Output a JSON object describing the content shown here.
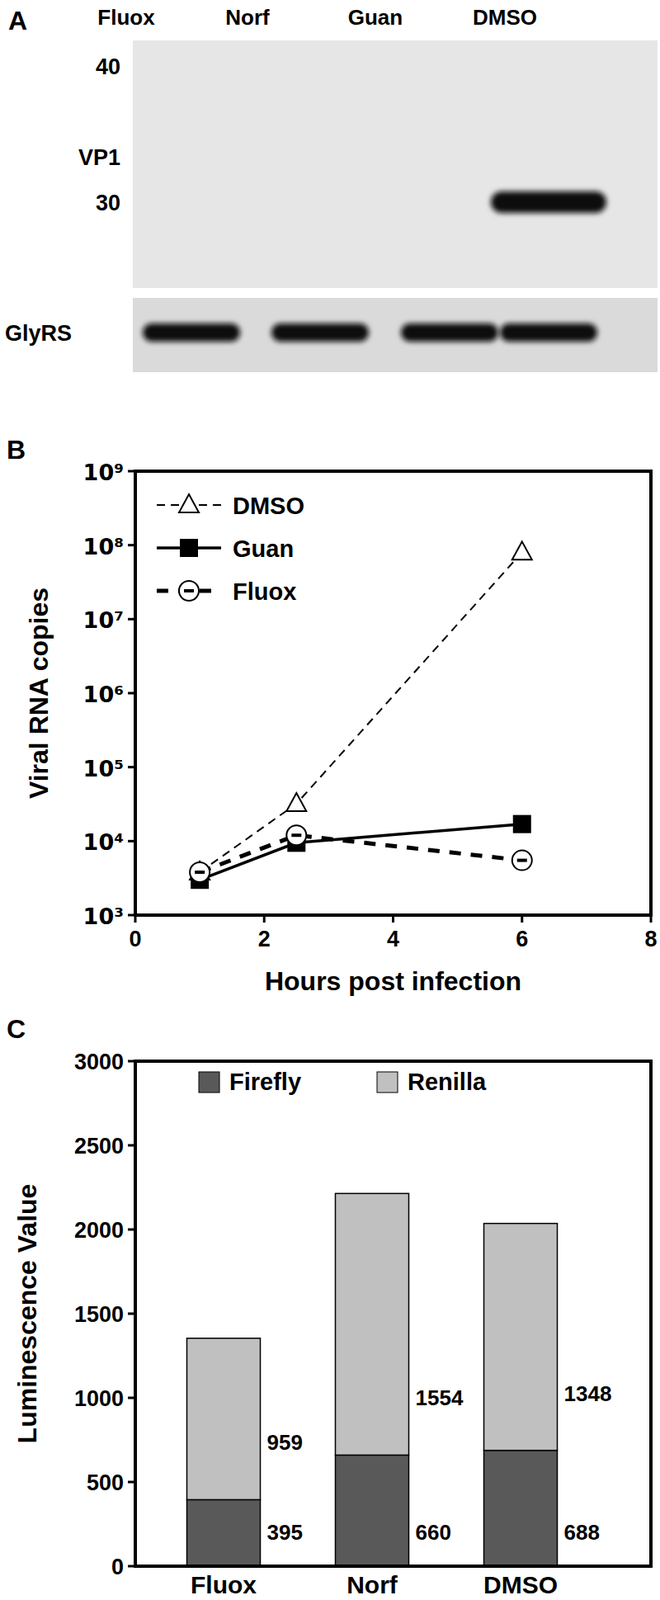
{
  "chart_data": [
    {
      "type": "blot",
      "title": "A",
      "lanes": [
        "Fluox",
        "Norf",
        "Guan",
        "DMSO"
      ],
      "ladder": [
        40,
        30
      ],
      "blots": [
        {
          "name": "VP1",
          "bands": [
            false,
            false,
            false,
            true
          ]
        },
        {
          "name": "GlyRS",
          "bands": [
            true,
            true,
            true,
            true
          ]
        }
      ]
    },
    {
      "type": "line",
      "title": "B",
      "x_label": "Hours post infection",
      "y_label": "Viral RNA copies",
      "log": "y",
      "legend": "top-left",
      "xlim": [
        0,
        8
      ],
      "xticks": [
        0,
        2,
        4,
        6,
        8
      ],
      "ylim": [
        1000,
        1000000000
      ],
      "yticks": [
        {
          "value": 1000,
          "label": "10³"
        },
        {
          "value": 10000,
          "label": "10⁴"
        },
        {
          "value": 100000,
          "label": "10⁵"
        },
        {
          "value": 1000000,
          "label": "10⁶"
        },
        {
          "value": 10000000,
          "label": "10⁷"
        },
        {
          "value": 100000000,
          "label": "10⁸"
        },
        {
          "value": 1000000000,
          "label": "10⁹"
        }
      ],
      "x": [
        1,
        2.5,
        6
      ],
      "series": [
        {
          "name": "DMSO",
          "color": "#000000",
          "line_style": "dashed",
          "marker": "open-triangle",
          "values": [
            3800,
            32000,
            80000000
          ]
        },
        {
          "name": "Guan",
          "color": "#000000",
          "line_style": "solid",
          "marker": "filled-square",
          "values": [
            3000,
            9500,
            17000
          ]
        },
        {
          "name": "Fluox",
          "color": "#000000",
          "line_style": "heavy-dashed",
          "marker": "open-circle-dash",
          "values": [
            3800,
            12000,
            5500
          ]
        }
      ]
    },
    {
      "type": "bar",
      "title": "C",
      "y_label": "Luminescence Value",
      "stacked": true,
      "data_labels": true,
      "legend": "top",
      "categories": [
        "Fluox",
        "Norf",
        "DMSO"
      ],
      "ylim": [
        0,
        3000
      ],
      "yticks": [
        0,
        500,
        1000,
        1500,
        2000,
        2500,
        3000
      ],
      "series": [
        {
          "name": "Firefly",
          "color": "#595959",
          "values": [
            395,
            660,
            688
          ]
        },
        {
          "name": "Renilla",
          "color": "#c0c0c0",
          "values": [
            959,
            1554,
            1348
          ]
        }
      ]
    }
  ]
}
